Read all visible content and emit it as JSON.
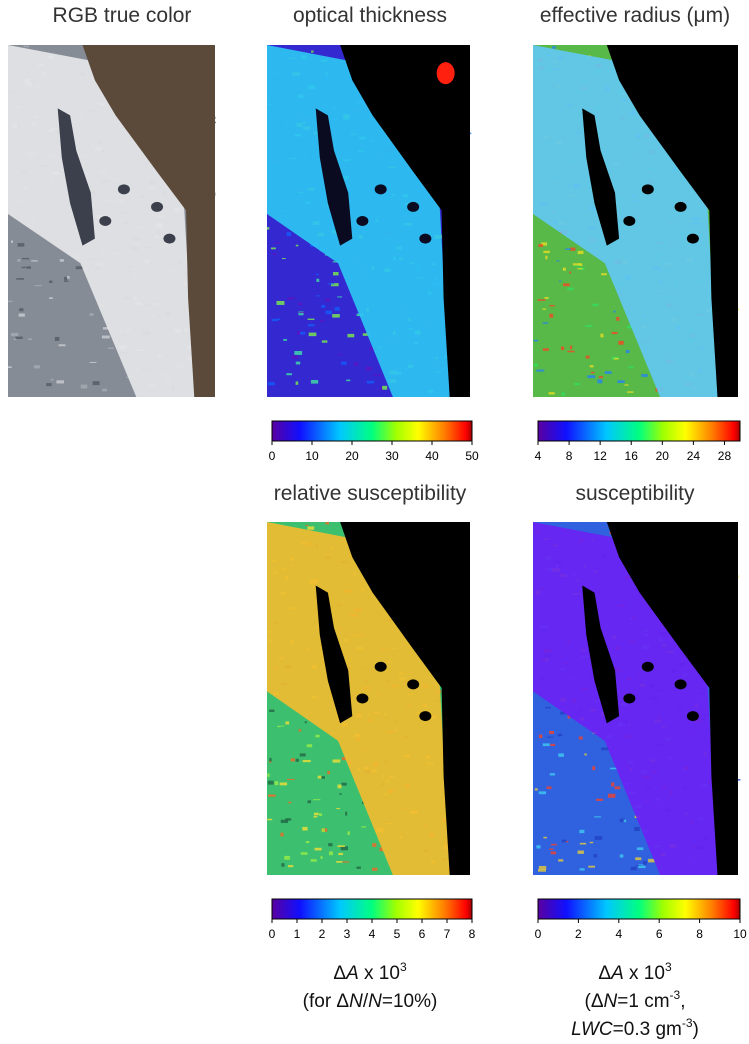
{
  "panels": [
    {
      "title": "RGB true color"
    },
    {
      "title": "optical thickness",
      "colorbar": {
        "lim": [
          0,
          50
        ],
        "ticks": [
          0,
          10,
          20,
          30,
          40,
          50
        ]
      }
    },
    {
      "title": "effective radius (μm)",
      "colorbar": {
        "lim": [
          4,
          30
        ],
        "ticks": [
          4,
          8,
          12,
          16,
          20,
          24,
          28
        ]
      }
    },
    {
      "title": "relative susceptibility",
      "colorbar": {
        "lim": [
          0,
          8
        ],
        "ticks": [
          0,
          1,
          2,
          3,
          4,
          5,
          6,
          7,
          8
        ]
      },
      "caption": [
        [
          {
            "text": "Δ"
          },
          {
            "text": "A",
            "style": "italic"
          },
          {
            "text": " x 10"
          },
          {
            "text": "3",
            "style": "sup"
          }
        ],
        [
          {
            "text": "(for Δ"
          },
          {
            "text": "N",
            "style": "italic"
          },
          {
            "text": "/"
          },
          {
            "text": "N",
            "style": "italic"
          },
          {
            "text": "=10%)"
          }
        ]
      ]
    },
    {
      "title": "susceptibility",
      "colorbar": {
        "lim": [
          0,
          10
        ],
        "ticks": [
          0,
          2,
          4,
          6,
          8,
          10
        ]
      },
      "caption": [
        [
          {
            "text": "Δ"
          },
          {
            "text": "A",
            "style": "italic"
          },
          {
            "text": " x 10"
          },
          {
            "text": "3",
            "style": "sup"
          }
        ],
        [
          {
            "text": "(Δ"
          },
          {
            "text": "N",
            "style": "italic"
          },
          {
            "text": "=1 cm"
          },
          {
            "text": "-3",
            "style": "sup"
          },
          {
            "text": ","
          }
        ],
        [
          {
            "text": "LWC",
            "style": "italic"
          },
          {
            "text": "=0.3 gm"
          },
          {
            "text": "-3",
            "style": "sup"
          },
          {
            "text": ")"
          }
        ]
      ]
    }
  ]
}
